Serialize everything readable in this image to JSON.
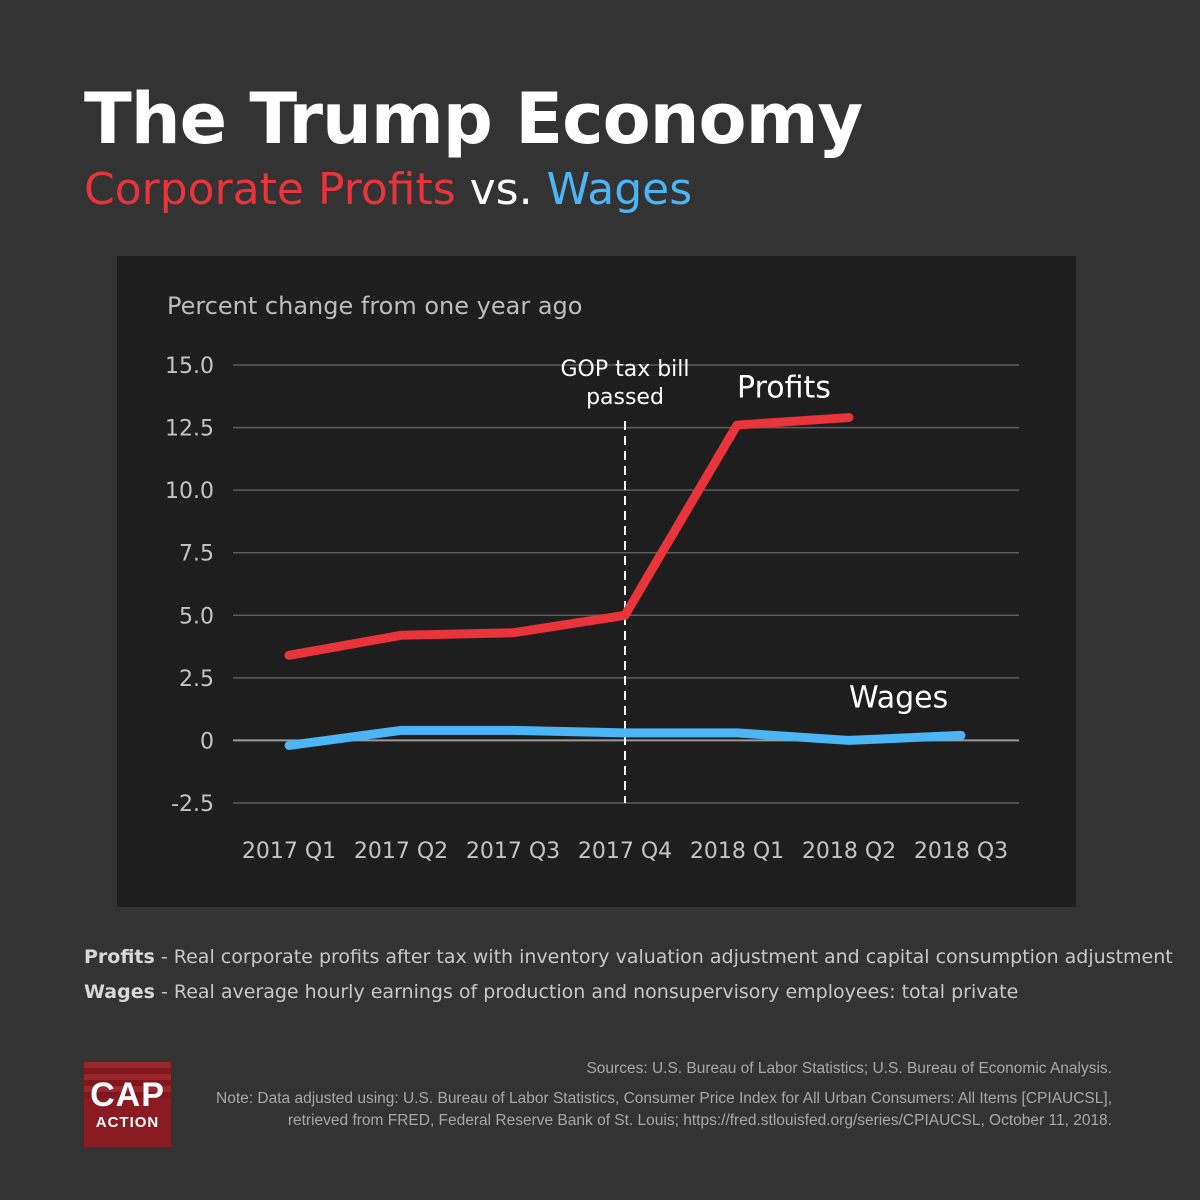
{
  "header": {
    "title": "The Trump Economy",
    "subtitle_part1": "Corporate Profits",
    "subtitle_vs": " vs. ",
    "subtitle_part2": "Wages"
  },
  "colors": {
    "profits": "#e8343a",
    "wages": "#4bb5f5",
    "background": "#333333",
    "panel": "#1e1e1e"
  },
  "chart_data": {
    "type": "line",
    "ylabel": "Percent change from one year ago",
    "categories": [
      "2017 Q1",
      "2017 Q2",
      "2017 Q3",
      "2017 Q4",
      "2018 Q1",
      "2018 Q2",
      "2018 Q3"
    ],
    "yticks": [
      15.0,
      12.5,
      10.0,
      7.5,
      5.0,
      2.5,
      0,
      -2.5
    ],
    "ytick_labels": [
      "15.0",
      "12.5",
      "10.0",
      "7.5",
      "5.0",
      "2.5",
      "0",
      "-2.5"
    ],
    "ylim": [
      -2.5,
      15.0
    ],
    "grid": true,
    "series": [
      {
        "name": "Profits",
        "color": "#e8343a",
        "values": [
          3.4,
          4.2,
          4.3,
          5.0,
          12.6,
          12.9,
          null
        ]
      },
      {
        "name": "Wages",
        "color": "#4bb5f5",
        "values": [
          -0.2,
          0.4,
          0.4,
          0.3,
          0.3,
          0.0,
          0.2
        ]
      }
    ],
    "annotation": {
      "category": "2017 Q4",
      "line1": "GOP tax bill",
      "line2": "passed"
    }
  },
  "definitions": {
    "profits_term": "Profits",
    "profits_text": " - Real corporate profits after tax with inventory valuation adjustment and capital consumption adjustment",
    "wages_term": "Wages",
    "wages_text": " - Real average hourly earnings of production and nonsupervisory employees: total private"
  },
  "footer": {
    "sources": "Sources: U.S. Bureau of Labor Statistics; U.S. Bureau of Economic Analysis.",
    "note_line1": "Note: Data adjusted using: U.S. Bureau of Labor Statistics, Consumer Price Index for All Urban Consumers: All Items [CPIAUCSL],",
    "note_line2": "retrieved from FRED, Federal Reserve Bank of St. Louis; https://fred.stlouisfed.org/series/CPIAUCSL, October 11, 2018."
  },
  "logo": {
    "line1": "CAP",
    "line2": "ACTION"
  }
}
